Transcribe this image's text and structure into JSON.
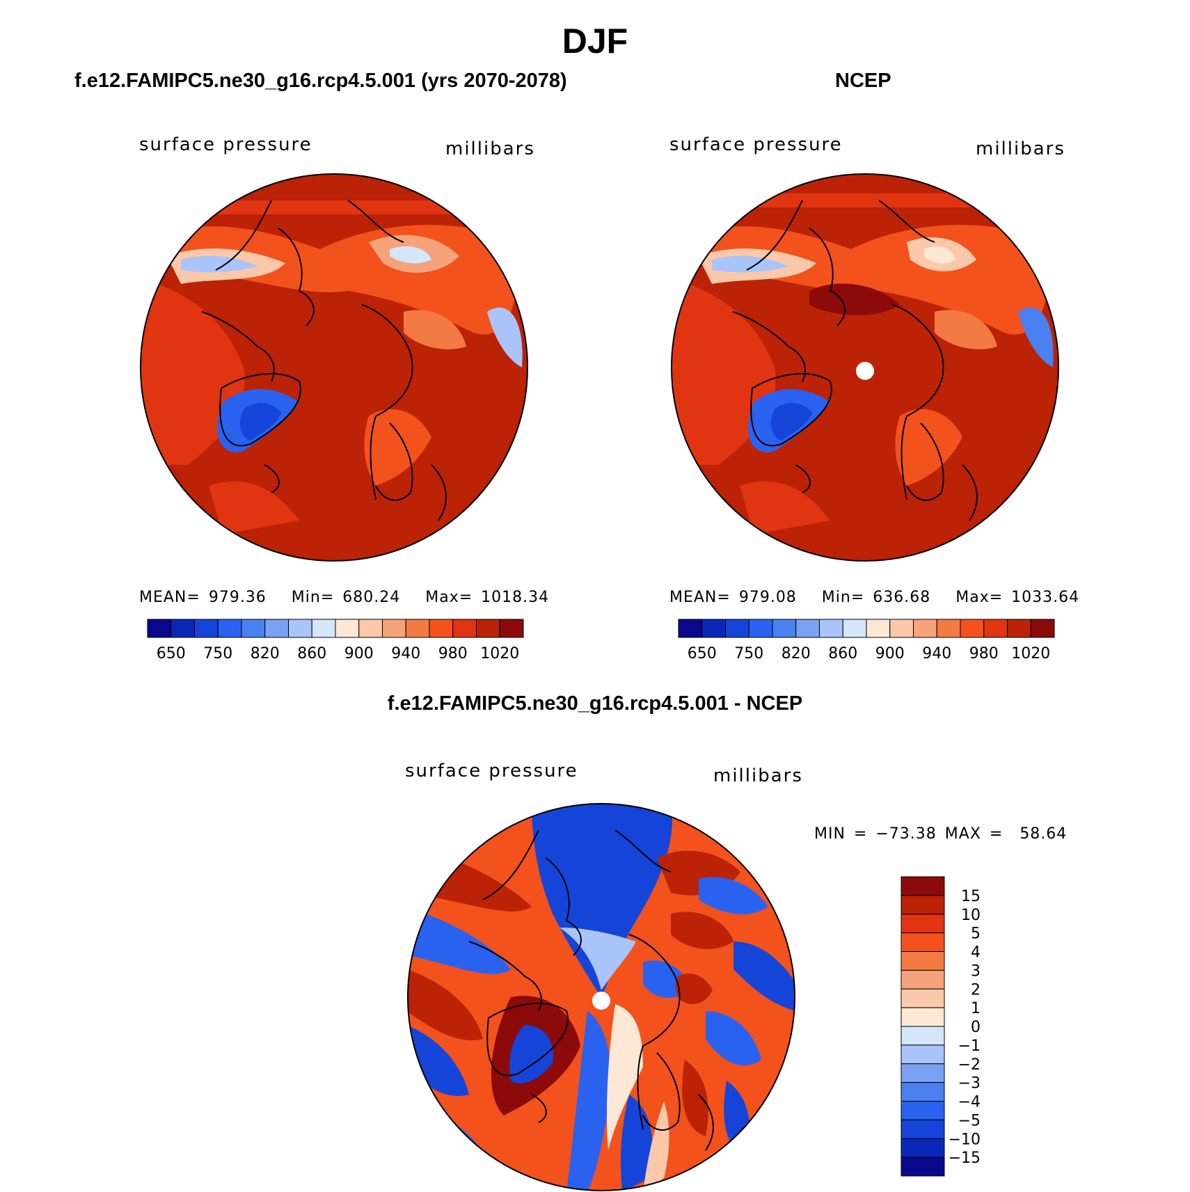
{
  "figure": {
    "title": "DJF",
    "panels": [
      {
        "id": "model",
        "title": "f.e12.FAMIPC5.ne30_g16.rcp4.5.001 (yrs 2070-2078)",
        "left_label": "surface pressure",
        "right_label": "millibars",
        "stats": {
          "mean_label": "MEAN=",
          "mean": "979.36",
          "min_label": "Min=",
          "min": "680.24",
          "max_label": "Max=",
          "max": "1018.34"
        }
      },
      {
        "id": "obs",
        "title": "NCEP",
        "left_label": "surface pressure",
        "right_label": "millibars",
        "stats": {
          "mean_label": "MEAN=",
          "mean": "979.08",
          "min_label": "Min=",
          "min": "636.68",
          "max_label": "Max=",
          "max": "1033.64"
        }
      }
    ],
    "diff_panel": {
      "title": "f.e12.FAMIPC5.ne30_g16.rcp4.5.001 - NCEP",
      "left_label": "surface pressure",
      "right_label": "millibars",
      "stats": {
        "min_label": "MIN =",
        "min": "−73.38",
        "max_label": "MAX =",
        "max": "58.64"
      }
    }
  },
  "chart_data": [
    {
      "type": "heatmap",
      "projection": "north polar stereographic",
      "title": "f.e12.FAMIPC5.ne30_g16.rcp4.5.001 (yrs 2070-2078)",
      "variable": "surface pressure",
      "units": "millibars",
      "mean": 979.36,
      "min": 680.24,
      "max": 1018.34,
      "colorbar": {
        "colors": [
          "#08088c",
          "#0a28b8",
          "#1445d8",
          "#2a62f0",
          "#4a80f0",
          "#7ba1f4",
          "#a9c4f8",
          "#d3e6fa",
          "#fde8d6",
          "#fbc9a9",
          "#f6a27a",
          "#f47a44",
          "#f3521c",
          "#e03510",
          "#bb2206",
          "#8c0a0a"
        ],
        "tick_labels": [
          "650",
          "750",
          "820",
          "860",
          "900",
          "940",
          "980",
          "1020"
        ]
      }
    },
    {
      "type": "heatmap",
      "projection": "north polar stereographic",
      "title": "NCEP",
      "variable": "surface pressure",
      "units": "millibars",
      "mean": 979.08,
      "min": 636.68,
      "max": 1033.64,
      "colorbar": {
        "colors": [
          "#08088c",
          "#0a28b8",
          "#1445d8",
          "#2a62f0",
          "#4a80f0",
          "#7ba1f4",
          "#a9c4f8",
          "#d3e6fa",
          "#fde8d6",
          "#fbc9a9",
          "#f6a27a",
          "#f47a44",
          "#f3521c",
          "#e03510",
          "#bb2206",
          "#8c0a0a"
        ],
        "tick_labels": [
          "650",
          "750",
          "820",
          "860",
          "900",
          "940",
          "980",
          "1020"
        ]
      }
    },
    {
      "type": "heatmap",
      "projection": "north polar stereographic",
      "title": "f.e12.FAMIPC5.ne30_g16.rcp4.5.001 - NCEP",
      "variable": "surface pressure",
      "units": "millibars",
      "min": -73.38,
      "max": 58.64,
      "colorbar": {
        "colors": [
          "#8c0a0a",
          "#bb2206",
          "#e03510",
          "#f3521c",
          "#f47a44",
          "#f6a27a",
          "#fbc9a9",
          "#fde8d6",
          "#d3e6fa",
          "#a9c4f8",
          "#7ba1f4",
          "#4a80f0",
          "#2a62f0",
          "#1445d8",
          "#0a28b8",
          "#08088c"
        ],
        "tick_labels": [
          "15",
          "10",
          "5",
          "4",
          "3",
          "2",
          "1",
          "0",
          "−1",
          "−2",
          "−3",
          "−4",
          "−5",
          "−10",
          "−15"
        ]
      }
    }
  ]
}
